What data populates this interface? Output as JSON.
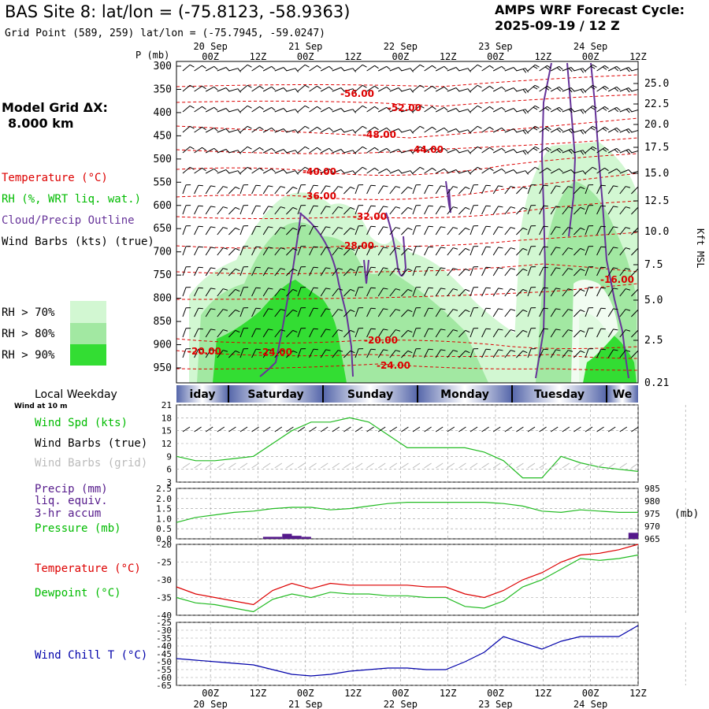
{
  "header": {
    "title": "BAS Site 8:  lat/lon = (-75.8123, -58.9363)",
    "grid_point": "Grid Point (589, 259) lat/lon = (-75.7945, -59.0247)",
    "forecast_title": "AMPS WRF Forecast Cycle:",
    "forecast_cycle": "2025-09-19 / 12  Z"
  },
  "left_legend": {
    "model_grid_label": "Model Grid ΔX:",
    "model_grid_value": "8.000 km",
    "temperature": "Temperature (°C)",
    "rh": "RH (%, WRT liq. wat.)",
    "cloud": "Cloud/Precip Outline",
    "wind": "Wind Barbs (kts) (true)",
    "rh70": "RH > 70%",
    "rh80": "RH > 80%",
    "rh90": "RH > 90%"
  },
  "time_axis": {
    "top_days": [
      "20 Sep",
      "21 Sep",
      "22 Sep",
      "23 Sep",
      "24 Sep"
    ],
    "hour_labels": [
      "00Z",
      "12Z",
      "00Z",
      "12Z",
      "00Z",
      "12Z",
      "00Z",
      "12Z",
      "00Z",
      "12Z"
    ],
    "bottom_days": [
      "20 Sep",
      "21 Sep",
      "22 Sep",
      "23 Sep",
      "24 Sep"
    ]
  },
  "weekday_strip": {
    "title": "Local Weekday",
    "subtitle": "Wind at 10 m",
    "days": [
      "iday",
      "Saturday",
      "Sunday",
      "Monday",
      "Tuesday",
      "We"
    ]
  },
  "colors": {
    "rh70": "#d2f7d2",
    "rh80": "#a2e8a2",
    "rh90": "#33dd33",
    "temperature": "#dd0000",
    "dewpoint": "#00cc00",
    "cloud": "#663399",
    "wind_chill": "#0000aa",
    "pressure": "#22bb22",
    "precip": "#551a8b"
  },
  "chart_data": [
    {
      "type": "heatmap",
      "panel": "time-height cross-section",
      "ylabel": "P (mb)",
      "y2label": "Kft MSL",
      "pressure_ticks": [
        300,
        350,
        400,
        450,
        500,
        550,
        600,
        650,
        700,
        750,
        800,
        850,
        900,
        950
      ],
      "kft_ticks": [
        "25.0",
        "22.5",
        "20.0",
        "17.5",
        "15.0",
        "12.5",
        "10.0",
        "7.5",
        "5.0",
        "2.5",
        "0.21"
      ],
      "temperature_labels": [
        "-56.00",
        "-52.00",
        "-48.00",
        "-44.00",
        "-40.00",
        "-36.00",
        "-32.00",
        "-28.00",
        "-16.00",
        "-20.00",
        "-24.00",
        "-20.00",
        "-24.00"
      ]
    },
    {
      "type": "line",
      "panel": "wind speed",
      "legend": [
        "Wind Spd (kts)",
        "Wind Barbs (true)",
        "Wind Barbs (grid)"
      ],
      "yticks": [
        3,
        6,
        9,
        12,
        15,
        18,
        21
      ],
      "ylim": [
        3,
        21
      ],
      "x": [
        0,
        6,
        12,
        18,
        24,
        30,
        36,
        42,
        48,
        54,
        60,
        66,
        72,
        78,
        84,
        90,
        96,
        102,
        108,
        114,
        120,
        126,
        132,
        138,
        144
      ],
      "series": [
        {
          "name": "Wind Spd (kts)",
          "values": [
            9,
            8,
            8,
            8.5,
            9,
            12,
            15,
            17,
            17,
            18,
            17,
            14,
            11,
            11,
            11,
            11,
            10,
            8,
            4,
            4,
            9,
            7.5,
            6.5,
            6,
            5.5
          ]
        }
      ]
    },
    {
      "type": "bar",
      "panel": "precip and pressure",
      "legend": [
        "Precip (mm)",
        "liq. equiv.",
        "3-hr accum",
        "Pressure (mb)"
      ],
      "yticks_left": [
        "0.0",
        "0.5",
        "1.0",
        "1.5",
        "2.0",
        "2.5"
      ],
      "yticks_right": [
        965,
        970,
        975,
        980,
        985
      ],
      "y2label": "(mb)",
      "precip_bars": [
        {
          "start_hr": 27,
          "end_hr": 33,
          "value": 0.1
        },
        {
          "start_hr": 33,
          "end_hr": 36,
          "value": 0.25
        },
        {
          "start_hr": 36,
          "end_hr": 39,
          "value": 0.15
        },
        {
          "start_hr": 39,
          "end_hr": 42,
          "value": 0.1
        },
        {
          "start_hr": 141,
          "end_hr": 144,
          "value": 0.3
        }
      ],
      "pressure_x": [
        0,
        6,
        12,
        18,
        24,
        30,
        36,
        42,
        48,
        54,
        60,
        66,
        72,
        78,
        84,
        90,
        96,
        102,
        108,
        114,
        120,
        126,
        132,
        138,
        144
      ],
      "pressure_mb": [
        971.5,
        973.5,
        974.5,
        975.5,
        976,
        977,
        977.5,
        977.5,
        976.5,
        977,
        978,
        979,
        979.5,
        979.5,
        979.5,
        979.5,
        979.5,
        979,
        978,
        976,
        975.5,
        976.5,
        976,
        975.5,
        975.5
      ]
    },
    {
      "type": "line",
      "panel": "temperature and dewpoint",
      "legend": [
        "Temperature (°C)",
        "Dewpoint (°C)"
      ],
      "yticks": [
        -20,
        -25,
        -30,
        -35,
        -40
      ],
      "ylim": [
        -40,
        -20
      ],
      "x": [
        0,
        6,
        12,
        18,
        24,
        30,
        36,
        42,
        48,
        54,
        60,
        66,
        72,
        78,
        84,
        90,
        96,
        102,
        108,
        114,
        120,
        126,
        132,
        138,
        144
      ],
      "series": [
        {
          "name": "Temperature (°C)",
          "values": [
            -32,
            -34,
            -35,
            -36,
            -37,
            -33,
            -31,
            -32.5,
            -31,
            -31.5,
            -31.5,
            -31.5,
            -31.5,
            -32,
            -32,
            -34,
            -35,
            -33,
            -30,
            -28,
            -25,
            -23,
            -22.5,
            -21.5,
            -20
          ]
        },
        {
          "name": "Dewpoint (°C)",
          "values": [
            -35,
            -36.5,
            -37,
            -38,
            -39,
            -35.5,
            -34,
            -35,
            -33.5,
            -34,
            -34,
            -34.5,
            -34.5,
            -35,
            -35,
            -37.5,
            -38,
            -36,
            -32,
            -30,
            -27,
            -24,
            -24.5,
            -24,
            -23
          ]
        }
      ]
    },
    {
      "type": "line",
      "panel": "wind chill",
      "legend": [
        "Wind Chill T (°C)"
      ],
      "yticks": [
        -25,
        -30,
        -35,
        -40,
        -45,
        -50,
        -55,
        -60,
        -65
      ],
      "ylim": [
        -65,
        -25
      ],
      "x": [
        0,
        6,
        12,
        18,
        24,
        30,
        36,
        42,
        48,
        54,
        60,
        66,
        72,
        78,
        84,
        90,
        96,
        102,
        108,
        114,
        120,
        126,
        132,
        138,
        144
      ],
      "series": [
        {
          "name": "Wind Chill T (°C)",
          "values": [
            -48,
            -49,
            -50,
            -51,
            -52,
            -55,
            -58,
            -59,
            -58,
            -56,
            -55,
            -54,
            -54,
            -55,
            -55,
            -50,
            -44,
            -34,
            -38,
            -42,
            -37,
            -34,
            -34,
            -34,
            -27
          ]
        }
      ]
    }
  ]
}
